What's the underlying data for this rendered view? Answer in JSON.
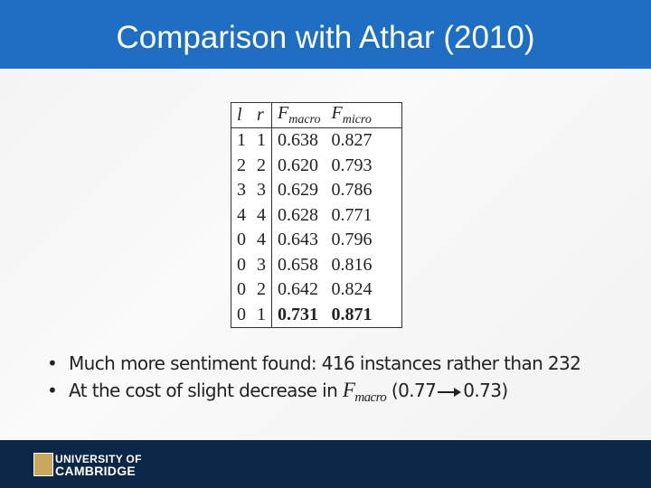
{
  "header": {
    "title": "Comparison with Athar (2010)"
  },
  "table": {
    "columns": [
      {
        "base": "l"
      },
      {
        "base": "r"
      },
      {
        "base": "F",
        "sub": "macro"
      },
      {
        "base": "F",
        "sub": "micro"
      }
    ],
    "rows": [
      [
        "1",
        "1",
        "0.638",
        "0.827"
      ],
      [
        "2",
        "2",
        "0.620",
        "0.793"
      ],
      [
        "3",
        "3",
        "0.629",
        "0.786"
      ],
      [
        "4",
        "4",
        "0.628",
        "0.771"
      ],
      [
        "0",
        "4",
        "0.643",
        "0.796"
      ],
      [
        "0",
        "3",
        "0.658",
        "0.816"
      ],
      [
        "0",
        "2",
        "0.642",
        "0.824"
      ],
      [
        "0",
        "1",
        "0.731",
        "0.871"
      ]
    ]
  },
  "bullets": [
    {
      "text": "Much more sentiment found: 416 instances rather than 232"
    },
    {
      "text": "At the cost of slight decrease in",
      "symbol": "F",
      "sub": "macro",
      "from": "(0.77",
      "to": "0.73)"
    }
  ],
  "footer": {
    "logo_line1": "UNIVERSITY OF",
    "logo_line2": "CAMBRIDGE"
  }
}
